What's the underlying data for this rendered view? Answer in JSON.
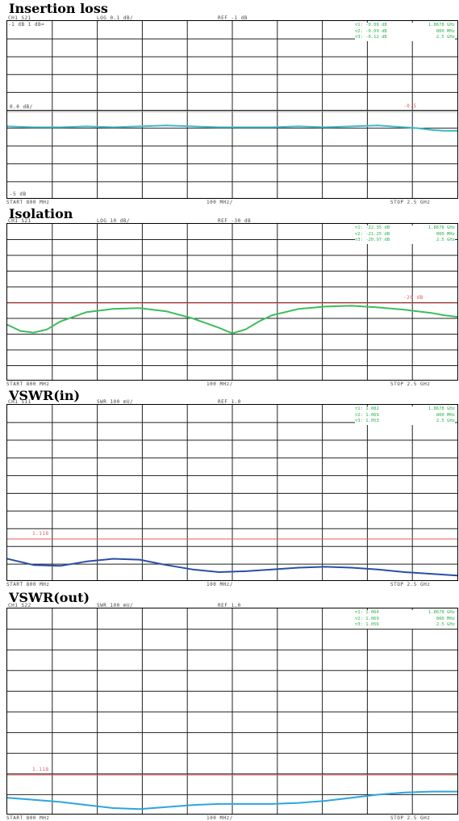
{
  "panels": [
    {
      "title": "Insertion loss",
      "header_left": "CH1 S21",
      "header_mid": "LOG  0.1 dB/",
      "header_ref": "REF -1 dB",
      "scale_label": "-1 dB  1 dB=",
      "ref_label": "0.0 dB/",
      "bottom_left_label": "-5 dB",
      "marker_lines": [
        "-0.08 dB",
        "1.8678 GHz",
        "-0.09 dB",
        "800 MHz",
        "-0.12 dB",
        "2.5 GHz"
      ],
      "limit_label": "-0.5",
      "footer_start": "START 800 MHz",
      "footer_mid": "100 MHz/",
      "footer_stop": "STOP 2.5 GHz",
      "trace_color": "#3fb8c8",
      "chart_data": {
        "type": "line",
        "title": "Insertion loss",
        "xlabel": "",
        "ylabel": "",
        "xlim": [
          800,
          2500
        ],
        "x_unit": "MHz",
        "y_divisions": 10,
        "series": [
          {
            "x": [
              800,
              900,
              1000,
              1100,
              1200,
              1300,
              1400,
              1500,
              1600,
              1700,
              1800,
              1900,
              2000,
              2100,
              2200,
              2300,
              2350,
              2400,
              2450,
              2500
            ],
            "y": [
              5.9,
              5.95,
              5.95,
              5.9,
              5.95,
              5.9,
              5.85,
              5.9,
              5.95,
              5.95,
              5.95,
              5.9,
              5.95,
              5.9,
              5.85,
              5.95,
              6.0,
              6.1,
              6.15,
              6.15
            ]
          }
        ]
      }
    },
    {
      "title": "Isolation",
      "header_left": "CH1 S21",
      "header_mid": "LOG  10 dB/",
      "header_ref": "REF -30 dB",
      "marker_lines": [
        "-22.35 dB",
        "1.8678 GHz",
        "-21.25 dB",
        "800 MHz",
        "-20.97 dB",
        "2.5 GHz"
      ],
      "limit_label": "-20 dB",
      "footer_start": "START 800 MHz",
      "footer_mid": "100 MHz/",
      "footer_stop": "STOP 2.5 GHz",
      "trace_color": "#3dbd5a",
      "chart_data": {
        "type": "line",
        "title": "Isolation",
        "xlabel": "",
        "ylabel": "",
        "xlim": [
          800,
          2500
        ],
        "x_unit": "MHz",
        "y_divisions": 10,
        "series": [
          {
            "x": [
              800,
              850,
              900,
              950,
              1000,
              1100,
              1200,
              1300,
              1400,
              1500,
              1600,
              1650,
              1700,
              1750,
              1800,
              1900,
              2000,
              2100,
              2200,
              2300,
              2400,
              2450,
              2500
            ],
            "y": [
              6.4,
              6.8,
              6.9,
              6.7,
              6.2,
              5.6,
              5.4,
              5.35,
              5.55,
              6.0,
              6.6,
              6.95,
              6.7,
              6.2,
              5.8,
              5.4,
              5.25,
              5.2,
              5.3,
              5.45,
              5.65,
              5.8,
              5.9
            ]
          }
        ]
      }
    },
    {
      "title": "VSWR(in)",
      "header_left": "CH1 S11",
      "header_mid": "SWR  100 mU/",
      "header_ref": "REF 1.0",
      "marker_lines": [
        "1.082",
        "1.8678 GHz",
        "1.069",
        "800 MHz",
        "1.053",
        "2.5 GHz"
      ],
      "limit_label": "1.118",
      "footer_start": "START 800 MHz",
      "footer_mid": "100 MHz/",
      "footer_stop": "STOP 2.5 GHz",
      "trace_color": "#2a4fa8",
      "chart_data": {
        "type": "line",
        "title": "VSWR(in)",
        "xlabel": "",
        "ylabel": "",
        "xlim": [
          800,
          2500
        ],
        "x_unit": "MHz",
        "y_divisions": 10,
        "series": [
          {
            "x": [
              800,
              900,
              1000,
              1100,
              1200,
              1300,
              1400,
              1500,
              1600,
              1700,
              1800,
              1900,
              2000,
              2100,
              2200,
              2300,
              2400,
              2500
            ],
            "y": [
              8.7,
              9.05,
              9.1,
              8.85,
              8.7,
              8.75,
              9.05,
              9.3,
              9.45,
              9.4,
              9.3,
              9.2,
              9.15,
              9.2,
              9.3,
              9.45,
              9.55,
              9.65
            ]
          }
        ]
      }
    },
    {
      "title": "VSWR(out)",
      "header_left": "CH1 S22",
      "header_mid": "SWR  100 mU/",
      "header_ref": "REF 1.0",
      "marker_lines": [
        "1.064",
        "1.8678 GHz",
        "1.069",
        "800 MHz",
        "1.056",
        "2.5 GHz"
      ],
      "limit_label": "1.118",
      "footer_start": "START 800 MHz",
      "footer_mid": "100 MHz/",
      "footer_stop": "STOP 2.5 GHz",
      "trace_color": "#2ba6de",
      "chart_data": {
        "type": "line",
        "title": "VSWR(out)",
        "xlabel": "",
        "ylabel": "",
        "xlim": [
          800,
          2500
        ],
        "x_unit": "MHz",
        "y_divisions": 10,
        "series": [
          {
            "x": [
              800,
              900,
              1000,
              1100,
              1200,
              1300,
              1400,
              1500,
              1600,
              1700,
              1800,
              1900,
              2000,
              2100,
              2200,
              2300,
              2400,
              2500
            ],
            "y": [
              9.15,
              9.25,
              9.35,
              9.5,
              9.65,
              9.7,
              9.6,
              9.5,
              9.45,
              9.45,
              9.45,
              9.4,
              9.3,
              9.15,
              9.0,
              8.9,
              8.85,
              8.85
            ]
          }
        ]
      }
    }
  ]
}
